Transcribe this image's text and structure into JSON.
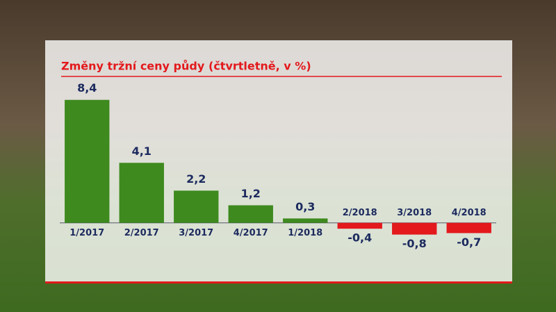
{
  "chart_data": {
    "type": "bar",
    "title": "Změny tržní ceny půdy",
    "subtitle": "(čtvrtletně, v %)",
    "categories": [
      "1/2017",
      "2/2017",
      "3/2017",
      "4/2017",
      "1/2018",
      "2/2018",
      "3/2018",
      "4/2018"
    ],
    "values": [
      8.4,
      4.1,
      2.2,
      1.2,
      0.3,
      -0.4,
      -0.8,
      -0.7
    ],
    "value_labels": [
      "8,4",
      "4,1",
      "2,2",
      "1,2",
      "0,3",
      "-0,4",
      "-0,8",
      "-0,7"
    ],
    "color": "#3e8a1e",
    "negative_color": "#e3191c",
    "ylim": [
      -4,
      10
    ]
  }
}
